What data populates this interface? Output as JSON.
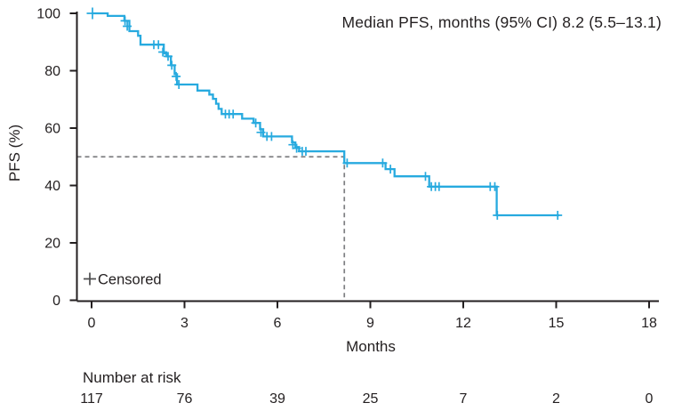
{
  "colors": {
    "curve": "#27AADF",
    "risk_numbers": "#2AACE2",
    "axis": "#231F20",
    "text": "#231F20",
    "median_dash": "#7D7E81",
    "censor_legend_plus": "#4D4D4F",
    "background": "#ffffff"
  },
  "chart_data": {
    "type": "line",
    "subtype": "kaplan_meier_step",
    "annotation": "Median PFS, months (95% CI) 8.2 (5.5–13.1)",
    "xlabel": "Months",
    "ylabel": "PFS (%)",
    "xlim": [
      0,
      18
    ],
    "ylim": [
      0,
      100
    ],
    "xticks": [
      0,
      3,
      6,
      9,
      12,
      15,
      18
    ],
    "yticks": [
      0,
      20,
      40,
      60,
      80,
      100
    ],
    "grid": false,
    "legend": {
      "censored_label": "Censored",
      "position": "inside-bottom-left"
    },
    "median": {
      "time": 8.16,
      "value_label": "8.2",
      "ci_label": "5.5–13.1",
      "pfs_percent": 50
    },
    "series": [
      {
        "name": "PFS",
        "color": "#27AADF",
        "end_time": 15.1,
        "steps": [
          [
            0,
            100
          ],
          [
            0.52,
            99.1
          ],
          [
            1.06,
            97.4
          ],
          [
            1.22,
            93.8
          ],
          [
            1.5,
            92.2
          ],
          [
            1.58,
            89.1
          ],
          [
            2.33,
            86.0
          ],
          [
            2.42,
            85.0
          ],
          [
            2.56,
            81.9
          ],
          [
            2.68,
            78.8
          ],
          [
            2.76,
            75.2
          ],
          [
            3.42,
            73.1
          ],
          [
            3.8,
            71.7
          ],
          [
            3.92,
            70.2
          ],
          [
            4.02,
            68.5
          ],
          [
            4.1,
            66.7
          ],
          [
            4.2,
            64.9
          ],
          [
            4.86,
            63.3
          ],
          [
            5.23,
            61.8
          ],
          [
            5.44,
            59.6
          ],
          [
            5.54,
            57.1
          ],
          [
            6.47,
            55.0
          ],
          [
            6.58,
            53.4
          ],
          [
            6.7,
            51.9
          ],
          [
            8.16,
            47.8
          ],
          [
            9.49,
            45.7
          ],
          [
            9.78,
            43.2
          ],
          [
            10.9,
            39.6
          ],
          [
            13.08,
            29.6
          ]
        ],
        "censors": [
          [
            0.03,
            100
          ],
          [
            1.08,
            97.4
          ],
          [
            1.15,
            95.5
          ],
          [
            2.01,
            89.1
          ],
          [
            2.16,
            89.1
          ],
          [
            2.3,
            86.5
          ],
          [
            2.47,
            85.0
          ],
          [
            2.59,
            81.9
          ],
          [
            2.73,
            78.0
          ],
          [
            2.82,
            75.2
          ],
          [
            4.32,
            64.9
          ],
          [
            4.44,
            64.9
          ],
          [
            4.57,
            64.9
          ],
          [
            5.3,
            61.8
          ],
          [
            5.47,
            58.5
          ],
          [
            5.66,
            57.1
          ],
          [
            5.81,
            57.1
          ],
          [
            6.5,
            54.2
          ],
          [
            6.62,
            53.0
          ],
          [
            6.8,
            51.9
          ],
          [
            6.92,
            51.9
          ],
          [
            8.25,
            47.8
          ],
          [
            9.4,
            47.8
          ],
          [
            9.65,
            45.7
          ],
          [
            10.78,
            43.2
          ],
          [
            10.97,
            39.6
          ],
          [
            11.1,
            39.6
          ],
          [
            11.22,
            39.6
          ],
          [
            12.87,
            39.6
          ],
          [
            13.02,
            39.6
          ],
          [
            13.1,
            29.6
          ],
          [
            15.05,
            29.6
          ]
        ]
      }
    ],
    "number_at_risk": {
      "label": "Number at risk",
      "times": [
        0,
        3,
        6,
        9,
        12,
        15,
        18
      ],
      "values": [
        117,
        76,
        39,
        25,
        7,
        2,
        0
      ]
    }
  }
}
